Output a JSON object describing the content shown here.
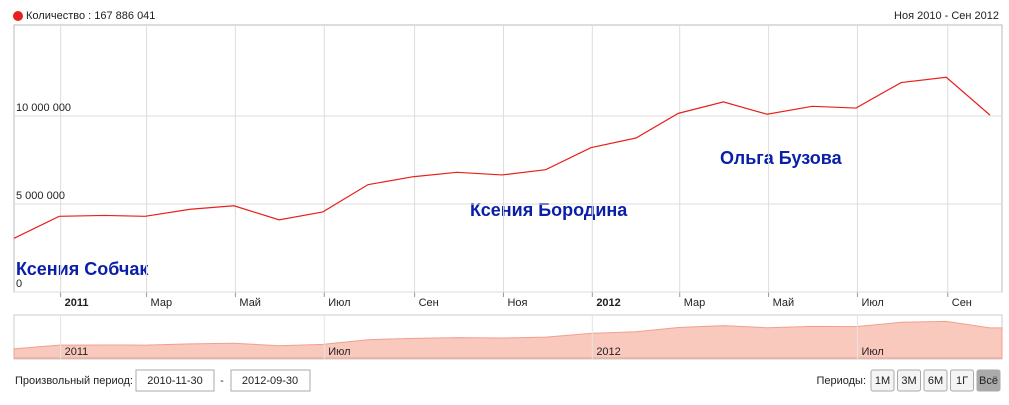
{
  "chart_data": {
    "type": "line",
    "series_label": "Количество",
    "total": {
      "value": 167886041,
      "label": "167 886 041"
    },
    "range_label": "Ноя 2010 - Сен 2012",
    "x": [
      "2010-11-30",
      "2010-12-31",
      "2011-01-31",
      "2011-02-28",
      "2011-03-31",
      "2011-04-30",
      "2011-05-31",
      "2011-06-30",
      "2011-07-31",
      "2011-08-31",
      "2011-09-30",
      "2011-10-31",
      "2011-11-30",
      "2011-12-31",
      "2012-01-31",
      "2012-02-29",
      "2012-03-31",
      "2012-04-30",
      "2012-05-31",
      "2012-06-30",
      "2012-07-31",
      "2012-08-31",
      "2012-09-30"
    ],
    "series": [
      {
        "name": "Количество",
        "color": "#e8201c",
        "values": [
          3050000,
          4300000,
          4350000,
          4300000,
          4700000,
          4900000,
          4100000,
          4550000,
          6100000,
          6550000,
          6800000,
          6650000,
          6950000,
          8200000,
          8750000,
          10150000,
          10800000,
          10100000,
          10550000,
          10450000,
          11900000,
          12200000,
          10050000
        ]
      }
    ],
    "xlim": [
      "2010-11-30",
      "2012-09-30"
    ],
    "xticks": [
      {
        "value": "2011-01-01",
        "label": "2011"
      },
      {
        "value": "2011-03-01",
        "label": "Мар"
      },
      {
        "value": "2011-05-01",
        "label": "Май"
      },
      {
        "value": "2011-07-01",
        "label": "Июл"
      },
      {
        "value": "2011-09-01",
        "label": "Сен"
      },
      {
        "value": "2011-11-01",
        "label": "Ноя"
      },
      {
        "value": "2012-01-01",
        "label": "2012"
      },
      {
        "value": "2012-03-01",
        "label": "Мар"
      },
      {
        "value": "2012-05-01",
        "label": "Май"
      },
      {
        "value": "2012-07-01",
        "label": "Июл"
      },
      {
        "value": "2012-09-01",
        "label": "Сен"
      }
    ],
    "ylim": [
      0,
      15000000
    ],
    "yticks": [
      0,
      {
        "value": 5000000,
        "label": "5 000 000"
      },
      {
        "value": 10000000,
        "label": "10 000 000"
      }
    ],
    "grid": true,
    "annotations": [
      "Ксения Собчак",
      "Ксения Бородина",
      "Ольга Бузова"
    ],
    "navigator": {
      "color": "#f9c9bd",
      "line_color": "#f0a090",
      "xticks": [
        {
          "value": "2011-01-01",
          "label": "2011"
        },
        {
          "value": "2011-07-01",
          "label": "Июл"
        },
        {
          "value": "2012-01-01",
          "label": "2012"
        },
        {
          "value": "2012-07-01",
          "label": "Июл"
        }
      ]
    }
  },
  "controls": {
    "period_label": "Произвольный период:",
    "from": "2010-11-30",
    "separator": "-",
    "to": "2012-09-30",
    "periods_label": "Периоды:",
    "periods": [
      "1М",
      "3М",
      "6М",
      "1Г",
      "Всё"
    ],
    "active": 4
  }
}
